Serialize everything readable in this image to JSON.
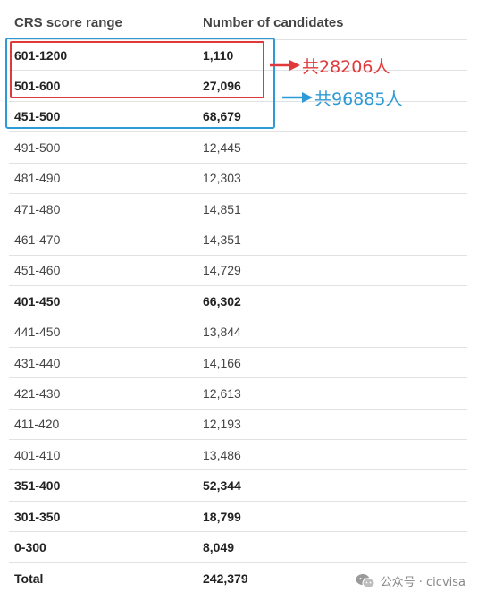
{
  "table": {
    "headers": [
      "CRS score range",
      "Number of candidates"
    ],
    "rows": [
      {
        "range": "601-1200",
        "count": "1,110",
        "bold": true
      },
      {
        "range": "501-600",
        "count": "27,096",
        "bold": true
      },
      {
        "range": "451-500",
        "count": "68,679",
        "bold": true
      },
      {
        "range": "491-500",
        "count": "12,445",
        "bold": false
      },
      {
        "range": "481-490",
        "count": "12,303",
        "bold": false
      },
      {
        "range": "471-480",
        "count": "14,851",
        "bold": false
      },
      {
        "range": "461-470",
        "count": "14,351",
        "bold": false
      },
      {
        "range": "451-460",
        "count": "14,729",
        "bold": false
      },
      {
        "range": "401-450",
        "count": "66,302",
        "bold": true
      },
      {
        "range": "441-450",
        "count": "13,844",
        "bold": false
      },
      {
        "range": "431-440",
        "count": "14,166",
        "bold": false
      },
      {
        "range": "421-430",
        "count": "12,613",
        "bold": false
      },
      {
        "range": "411-420",
        "count": "12,193",
        "bold": false
      },
      {
        "range": "401-410",
        "count": "13,486",
        "bold": false
      },
      {
        "range": "351-400",
        "count": "52,344",
        "bold": true
      },
      {
        "range": "301-350",
        "count": "18,799",
        "bold": true
      },
      {
        "range": "0-300",
        "count": "8,049",
        "bold": true
      },
      {
        "range": "Total",
        "count": "242,379",
        "bold": true
      }
    ]
  },
  "annotations": {
    "red_note": "共28206人",
    "blue_note": "共96885人",
    "red_color": "#e0393b",
    "blue_color": "#2c9ad6"
  },
  "watermark": {
    "icon": "wechat-icon",
    "text": "公众号 · cicvisa"
  }
}
